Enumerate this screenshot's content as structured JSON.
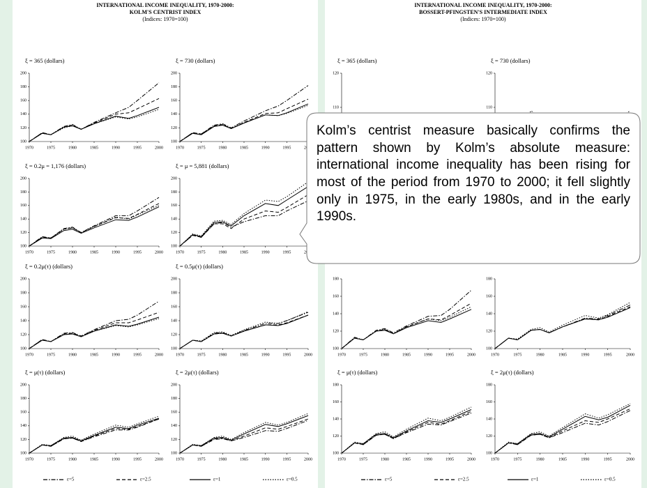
{
  "panels": [
    {
      "title_lines": [
        "INTERNATIONAL INCOME INEQUALITY, 1970-2000:",
        "KOLM'S CENTRIST INDEX"
      ],
      "note": "(Indices: 1970=100)",
      "x": [
        1970,
        1973,
        1975,
        1978,
        1980,
        1982,
        1985,
        1990,
        1993,
        1995,
        2000
      ],
      "xlim": [
        1970,
        2000
      ],
      "xticks": [
        1970,
        1975,
        1980,
        1985,
        1990,
        1995,
        2000
      ],
      "legend": [
        {
          "name": "ε=5",
          "dash": "6 2 1.5 2"
        },
        {
          "name": "ε=2.5",
          "dash": "5 3"
        },
        {
          "name": "ε=1",
          "dash": "none"
        },
        {
          "name": "ε=0.5",
          "dash": "1.5 2"
        }
      ],
      "charts": [
        {
          "type": "line",
          "title": "ξ = 365 (dollars)",
          "ylim": [
            100,
            200
          ],
          "yticks": [
            100,
            120,
            140,
            160,
            180,
            200
          ],
          "series": [
            [
              100,
              113,
              110,
              122,
              125,
              118,
              128,
              142,
              150,
              160,
              186
            ],
            [
              100,
              113,
              110,
              121,
              124,
              118,
              127,
              140,
              142,
              148,
              163
            ],
            [
              100,
              112,
              110,
              121,
              123,
              118,
              126,
              137,
              134,
              138,
              150
            ],
            [
              100,
              112,
              110,
              120,
              123,
              118,
              126,
              136,
              133,
              136,
              147
            ]
          ]
        },
        {
          "type": "line",
          "title": "ξ = 730 (dollars)",
          "ylim": [
            100,
            200
          ],
          "yticks": [
            100,
            120,
            140,
            160,
            180,
            200
          ],
          "series": [
            [
              100,
              113,
              111,
              124,
              126,
              120,
              130,
              145,
              152,
              160,
              182
            ],
            [
              100,
              113,
              111,
              123,
              125,
              119,
              128,
              141,
              142,
              148,
              162
            ],
            [
              100,
              112,
              110,
              122,
              124,
              119,
              127,
              139,
              138,
              142,
              155
            ],
            [
              100,
              112,
              110,
              122,
              124,
              119,
              127,
              139,
              138,
              141,
              153
            ]
          ]
        },
        {
          "type": "line",
          "title": "ξ = 0.2μ = 1,176 (dollars)",
          "ylim": [
            100,
            200
          ],
          "yticks": [
            100,
            120,
            140,
            160,
            180,
            200
          ],
          "series": [
            [
              100,
              114,
              112,
              126,
              128,
              120,
              130,
              145,
              145,
              152,
              172
            ],
            [
              100,
              113,
              112,
              125,
              127,
              120,
              129,
              142,
              141,
              147,
              163
            ],
            [
              100,
              112,
              111,
              123,
              125,
              119,
              127,
              139,
              138,
              143,
              158
            ],
            [
              100,
              113,
              112,
              125,
              127,
              120,
              129,
              143,
              140,
              146,
              160
            ]
          ]
        },
        {
          "type": "line",
          "title": "ξ = μ = 5,881 (dollars)",
          "ylim": [
            100,
            200
          ],
          "yticks": [
            100,
            120,
            140,
            160,
            180,
            200
          ],
          "series": [
            [
              100,
              116,
              113,
              133,
              135,
              128,
              136,
              145,
              145,
              152,
              167
            ],
            [
              100,
              116,
              113,
              133,
              133,
              126,
              140,
              152,
              150,
              157,
              176
            ],
            [
              100,
              117,
              114,
              135,
              136,
              130,
              145,
              163,
              160,
              168,
              188
            ],
            [
              100,
              118,
              115,
              137,
              138,
              132,
              148,
              168,
              166,
              173,
              195
            ]
          ]
        },
        {
          "type": "line",
          "title": "ξ = 0.2μ(τ) (dollars)",
          "ylim": [
            100,
            200
          ],
          "yticks": [
            100,
            120,
            140,
            160,
            180,
            200
          ],
          "series": [
            [
              100,
              113,
              110,
              122,
              123,
              118,
              127,
              140,
              142,
              148,
              168
            ],
            [
              100,
              113,
              110,
              121,
              122,
              118,
              126,
              137,
              137,
              141,
              152
            ],
            [
              100,
              112,
              110,
              120,
              121,
              117,
              125,
              134,
              132,
              135,
              145
            ],
            [
              100,
              112,
              110,
              120,
              121,
              117,
              125,
              133,
              131,
              134,
              143
            ]
          ]
        },
        {
          "type": "line",
          "title": "ξ = 0.5μ(τ) (dollars)",
          "ylim": [
            100,
            200
          ],
          "yticks": [
            100,
            120,
            140,
            160,
            180,
            200
          ],
          "series": [
            [
              100,
              112,
              110,
              122,
              123,
              118,
              126,
              136,
              136,
              140,
              152
            ],
            [
              100,
              112,
              110,
              121,
              122,
              118,
              125,
              134,
              134,
              137,
              148
            ],
            [
              100,
              112,
              110,
              121,
              122,
              118,
              125,
              134,
              133,
              136,
              148
            ],
            [
              100,
              112,
              111,
              123,
              124,
              119,
              127,
              138,
              136,
              140,
              153
            ]
          ]
        },
        {
          "type": "line",
          "title": "ξ = μ(τ) (dollars)",
          "ylim": [
            100,
            200
          ],
          "yticks": [
            100,
            120,
            140,
            160,
            180,
            200
          ],
          "series": [
            [
              100,
              112,
              110,
              121,
              122,
              117,
              124,
              134,
              134,
              138,
              150
            ],
            [
              100,
              112,
              110,
              121,
              122,
              117,
              125,
              136,
              135,
              139,
              150
            ],
            [
              100,
              112,
              111,
              122,
              123,
              118,
              126,
              138,
              136,
              141,
              151
            ],
            [
              100,
              113,
              111,
              123,
              125,
              119,
              128,
              141,
              138,
              143,
              154
            ]
          ]
        },
        {
          "type": "line",
          "title": "ξ = 2μ(τ) (dollars)",
          "ylim": [
            100,
            200
          ],
          "yticks": [
            100,
            120,
            140,
            160,
            180,
            200
          ],
          "series": [
            [
              100,
              112,
              110,
              120,
              121,
              118,
              123,
              133,
              132,
              136,
              148
            ],
            [
              100,
              112,
              110,
              121,
              122,
              118,
              125,
              137,
              135,
              139,
              150
            ],
            [
              100,
              112,
              111,
              122,
              123,
              119,
              128,
              142,
              139,
              143,
              155
            ],
            [
              100,
              113,
              111,
              123,
              125,
              120,
              130,
              145,
              141,
              145,
              158
            ]
          ]
        }
      ]
    },
    {
      "title_lines": [
        "INTERNATIONAL INCOME INEQUALITY, 1970-2000:",
        "BOSSERT-PFINGSTEN'S INTERMEDIATE INDEX"
      ],
      "note": "(Indices: 1970=100)",
      "x": [
        1970,
        1973,
        1975,
        1978,
        1980,
        1982,
        1985,
        1990,
        1993,
        1995,
        2000
      ],
      "xlim": [
        1970,
        2000
      ],
      "xticks": [
        1970,
        1975,
        1980,
        1985,
        1990,
        1995,
        2000
      ],
      "legend": [
        {
          "name": "ε=5",
          "dash": "6 2 1.5 2"
        },
        {
          "name": "ε=2.5",
          "dash": "5 3"
        },
        {
          "name": "ε=1",
          "dash": "none"
        },
        {
          "name": "ε=0.5",
          "dash": "1.5 2"
        }
      ],
      "charts": [
        {
          "type": "line",
          "title": "ξ = 365 (dollars)",
          "row": 0,
          "ylim": [
            100,
            120
          ],
          "yticks": [
            100,
            110,
            120
          ],
          "series": [
            [
              100,
              104,
              102,
              104,
              103,
              100,
              99,
              101,
              103,
              104,
              107
            ],
            [
              100,
              104,
              102,
              104,
              102,
              99,
              98,
              98,
              97,
              96,
              95
            ],
            [
              100,
              104,
              102,
              103,
              102,
              99,
              97,
              97,
              95,
              94,
              93
            ],
            [
              100,
              105,
              103,
              105,
              104,
              100,
              98,
              99,
              97,
              96,
              95
            ]
          ]
        },
        {
          "type": "line",
          "title": "ξ = 730 (dollars)",
          "row": 0,
          "ylim": [
            100,
            120
          ],
          "yticks": [
            100,
            110,
            120
          ],
          "series": [
            [
              100,
              106,
              103,
              106,
              105,
              101,
              101,
              103,
              104,
              105,
              109
            ],
            [
              100,
              105,
              102,
              106,
              104,
              100,
              99,
              101,
              99,
              98,
              97
            ],
            [
              100,
              105,
              102,
              107,
              105,
              101,
              100,
              102,
              99,
              98,
              96
            ],
            [
              100,
              106,
              103,
              109,
              107,
              102,
              101,
              104,
              101,
              100,
              98
            ]
          ]
        },
        {
          "type": "line",
          "row": 2,
          "ylim": [
            100,
            180
          ],
          "yticks": [
            100,
            120,
            140,
            160,
            180
          ],
          "series": [
            [
              100,
              113,
              110,
              121,
              123,
              118,
              126,
              137,
              138,
              145,
              167
            ],
            [
              100,
              112,
              110,
              120,
              122,
              117,
              125,
              134,
              133,
              138,
              152
            ],
            [
              100,
              112,
              110,
              120,
              121,
              117,
              124,
              132,
              130,
              134,
              145
            ],
            [
              100,
              112,
              110,
              120,
              122,
              117,
              125,
              134,
              132,
              136,
              148
            ]
          ]
        },
        {
          "type": "line",
          "row": 2,
          "ylim": [
            100,
            180
          ],
          "yticks": [
            100,
            120,
            140,
            160,
            180
          ],
          "series": [
            [
              100,
              112,
              110,
              121,
              122,
              118,
              125,
              135,
              134,
              138,
              150
            ],
            [
              100,
              112,
              110,
              121,
              122,
              118,
              125,
              134,
              133,
              137,
              148
            ],
            [
              100,
              112,
              110,
              121,
              122,
              118,
              125,
              134,
              133,
              136,
              147
            ],
            [
              100,
              112,
              111,
              122,
              124,
              119,
              127,
              138,
              135,
              139,
              153
            ]
          ]
        },
        {
          "type": "line",
          "title": "ξ = μ(τ) (dollars)",
          "row": 3,
          "ylim": [
            100,
            180
          ],
          "yticks": [
            100,
            120,
            140,
            160,
            180
          ],
          "series": [
            [
              100,
              112,
              110,
              121,
              122,
              117,
              124,
              134,
              133,
              137,
              147
            ],
            [
              100,
              112,
              110,
              121,
              122,
              117,
              125,
              136,
              134,
              138,
              149
            ],
            [
              100,
              112,
              111,
              122,
              123,
              118,
              126,
              138,
              136,
              140,
              151
            ],
            [
              100,
              113,
              111,
              123,
              125,
              119,
              128,
              141,
              138,
              142,
              154
            ]
          ]
        },
        {
          "type": "line",
          "title": "ξ = 2μ(τ) (dollars)",
          "row": 3,
          "ylim": [
            100,
            180
          ],
          "yticks": [
            100,
            120,
            140,
            160,
            180
          ],
          "series": [
            [
              100,
              112,
              110,
              121,
              122,
              118,
              124,
              135,
              133,
              137,
              150
            ],
            [
              100,
              112,
              110,
              121,
              122,
              118,
              126,
              138,
              136,
              140,
              152
            ],
            [
              100,
              112,
              111,
              122,
              123,
              119,
              128,
              143,
              139,
              142,
              156
            ],
            [
              100,
              113,
              111,
              123,
              125,
              120,
              130,
              146,
              141,
              145,
              158
            ]
          ]
        }
      ]
    }
  ],
  "callout": "Kolm’s centrist measure basically confirms the pattern shown by Kolm’s absolute measure: international income inequality has been rising for most of the period from 1970 to 2000; it fell slightly only in 1975, in the early 1980s, and in the early 1990s."
}
